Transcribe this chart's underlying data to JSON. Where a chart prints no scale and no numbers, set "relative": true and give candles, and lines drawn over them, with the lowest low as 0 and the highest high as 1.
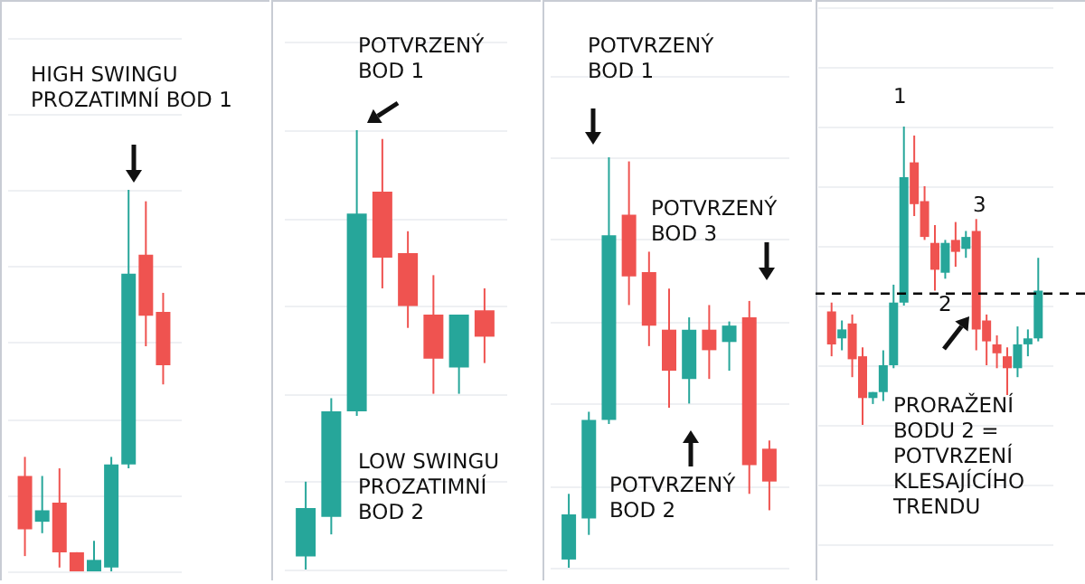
{
  "chart_data": [
    {
      "type": "candlestick",
      "relative": true,
      "tick_labels": false,
      "grid": true,
      "categories": [
        null,
        null,
        null,
        null,
        null,
        null,
        null,
        null,
        null
      ],
      "ohlc": [
        [
          0.25,
          0.3,
          0.04,
          0.11
        ],
        [
          0.13,
          0.25,
          0.1,
          0.16
        ],
        [
          0.18,
          0.27,
          0.01,
          0.05
        ],
        [
          0.05,
          0.05,
          0,
          0.0
        ],
        [
          0.0,
          0.08,
          0,
          0.03
        ],
        [
          0.01,
          0.3,
          0.0,
          0.28
        ],
        [
          0.28,
          1,
          0.27,
          0.78
        ],
        [
          0.83,
          0.97,
          0.59,
          0.67
        ],
        [
          0.68,
          0.73,
          0.49,
          0.54
        ]
      ],
      "colors": [
        "#ef5350",
        "#26a69a",
        "#ef5350",
        "#ef5350",
        "#26a69a",
        "#26a69a",
        "#26a69a",
        "#ef5350",
        "#ef5350"
      ],
      "annotations": [
        "HIGH SWINGU\nPROZATIMNÍ BOD 1"
      ]
    },
    {
      "type": "candlestick",
      "relative": true,
      "tick_labels": false,
      "grid": true,
      "categories": [
        null,
        null,
        null,
        null,
        null,
        null,
        null,
        null
      ],
      "ohlc": [
        [
          0.03,
          0.2,
          0,
          0.14
        ],
        [
          0.12,
          0.39,
          0.08,
          0.36
        ],
        [
          0.36,
          1,
          0.35,
          0.81
        ],
        [
          0.86,
          0.98,
          0.64,
          0.71
        ],
        [
          0.72,
          0.77,
          0.55,
          0.6
        ],
        [
          0.58,
          0.67,
          0.4,
          0.48
        ],
        [
          0.46,
          0.58,
          0.4,
          0.58
        ],
        [
          0.59,
          0.64,
          0.47,
          0.53
        ]
      ],
      "colors": [
        "#26a69a",
        "#26a69a",
        "#26a69a",
        "#ef5350",
        "#ef5350",
        "#ef5350",
        "#26a69a",
        "#ef5350"
      ],
      "annotations": [
        "POTVRZENÝ\nBOD 1",
        "LOW SWINGU\nPROZATIMNÍ\nBOD 2"
      ]
    },
    {
      "type": "candlestick",
      "relative": true,
      "tick_labels": false,
      "grid": true,
      "categories": [
        null,
        null,
        null,
        null,
        null,
        null,
        null,
        null,
        null,
        null,
        null
      ],
      "ohlc": [
        [
          0.02,
          0.18,
          0,
          0.13
        ],
        [
          0.12,
          0.38,
          0.08,
          0.36
        ],
        [
          0.36,
          1,
          0.35,
          0.81
        ],
        [
          0.86,
          0.99,
          0.64,
          0.71
        ],
        [
          0.72,
          0.77,
          0.54,
          0.59
        ],
        [
          0.58,
          0.68,
          0.39,
          0.48
        ],
        [
          0.46,
          0.61,
          0.4,
          0.58
        ],
        [
          0.58,
          0.64,
          0.46,
          0.53
        ],
        [
          0.55,
          0.6,
          0.48,
          0.59
        ],
        [
          0.61,
          0.65,
          0.18,
          0.25
        ],
        [
          0.29,
          0.31,
          0.14,
          0.21
        ]
      ],
      "colors": [
        "#26a69a",
        "#26a69a",
        "#26a69a",
        "#ef5350",
        "#ef5350",
        "#ef5350",
        "#26a69a",
        "#ef5350",
        "#26a69a",
        "#ef5350",
        "#ef5350"
      ],
      "annotations": [
        "POTVRZENÝ\nBOD 1",
        "POTVRZENÝ\nBOD 3",
        "POTVRZENÝ\nBOD 2"
      ]
    },
    {
      "type": "candlestick",
      "relative": true,
      "tick_labels": false,
      "grid": true,
      "categories": [
        null,
        null,
        null,
        null,
        null,
        null,
        null,
        null,
        null,
        null,
        null,
        null,
        null,
        null,
        null,
        null,
        null,
        null,
        null,
        null,
        null
      ],
      "ohlc": [
        [
          0.38,
          0.41,
          0.23,
          0.27
        ],
        [
          0.29,
          0.35,
          0.25,
          0.32
        ],
        [
          0.34,
          0.37,
          0.16,
          0.22
        ],
        [
          0.23,
          0.26,
          0,
          0.09
        ],
        [
          0.09,
          0.11,
          0.07,
          0.11
        ],
        [
          0.11,
          0.25,
          0.08,
          0.2
        ],
        [
          0.2,
          0.47,
          0.19,
          0.41
        ],
        [
          0.41,
          1,
          0.4,
          0.83
        ],
        [
          0.88,
          0.97,
          0.7,
          0.74
        ],
        [
          0.75,
          0.8,
          0.62,
          0.63
        ],
        [
          0.61,
          0.67,
          0.45,
          0.52
        ],
        [
          0.51,
          0.62,
          0.49,
          0.61
        ],
        [
          0.62,
          0.68,
          0.53,
          0.58
        ],
        [
          0.59,
          0.65,
          0.56,
          0.63
        ],
        [
          0.65,
          0.69,
          0.25,
          0.32
        ],
        [
          0.35,
          0.37,
          0.2,
          0.28
        ],
        [
          0.27,
          0.3,
          0.19,
          0.24
        ],
        [
          0.23,
          0.26,
          0.1,
          0.19
        ],
        [
          0.19,
          0.33,
          0.16,
          0.27
        ],
        [
          0.27,
          0.32,
          0.23,
          0.29
        ],
        [
          0.29,
          0.56,
          0.28,
          0.45
        ]
      ],
      "colors": [
        "#ef5350",
        "#26a69a",
        "#ef5350",
        "#ef5350",
        "#26a69a",
        "#26a69a",
        "#26a69a",
        "#26a69a",
        "#ef5350",
        "#ef5350",
        "#ef5350",
        "#26a69a",
        "#ef5350",
        "#26a69a",
        "#ef5350",
        "#ef5350",
        "#ef5350",
        "#ef5350",
        "#26a69a",
        "#26a69a",
        "#26a69a"
      ],
      "ref_lines": [
        {
          "axis": "y",
          "value": 0.44,
          "color": "#000000",
          "line_style": "dashed"
        }
      ],
      "annotations": [
        "1",
        "3",
        "2",
        "PRORAŽENÍ\nBODU 2 =\nPOTVRZENÍ\nKLESAJÍCÍHO\nTRENDU"
      ]
    }
  ]
}
